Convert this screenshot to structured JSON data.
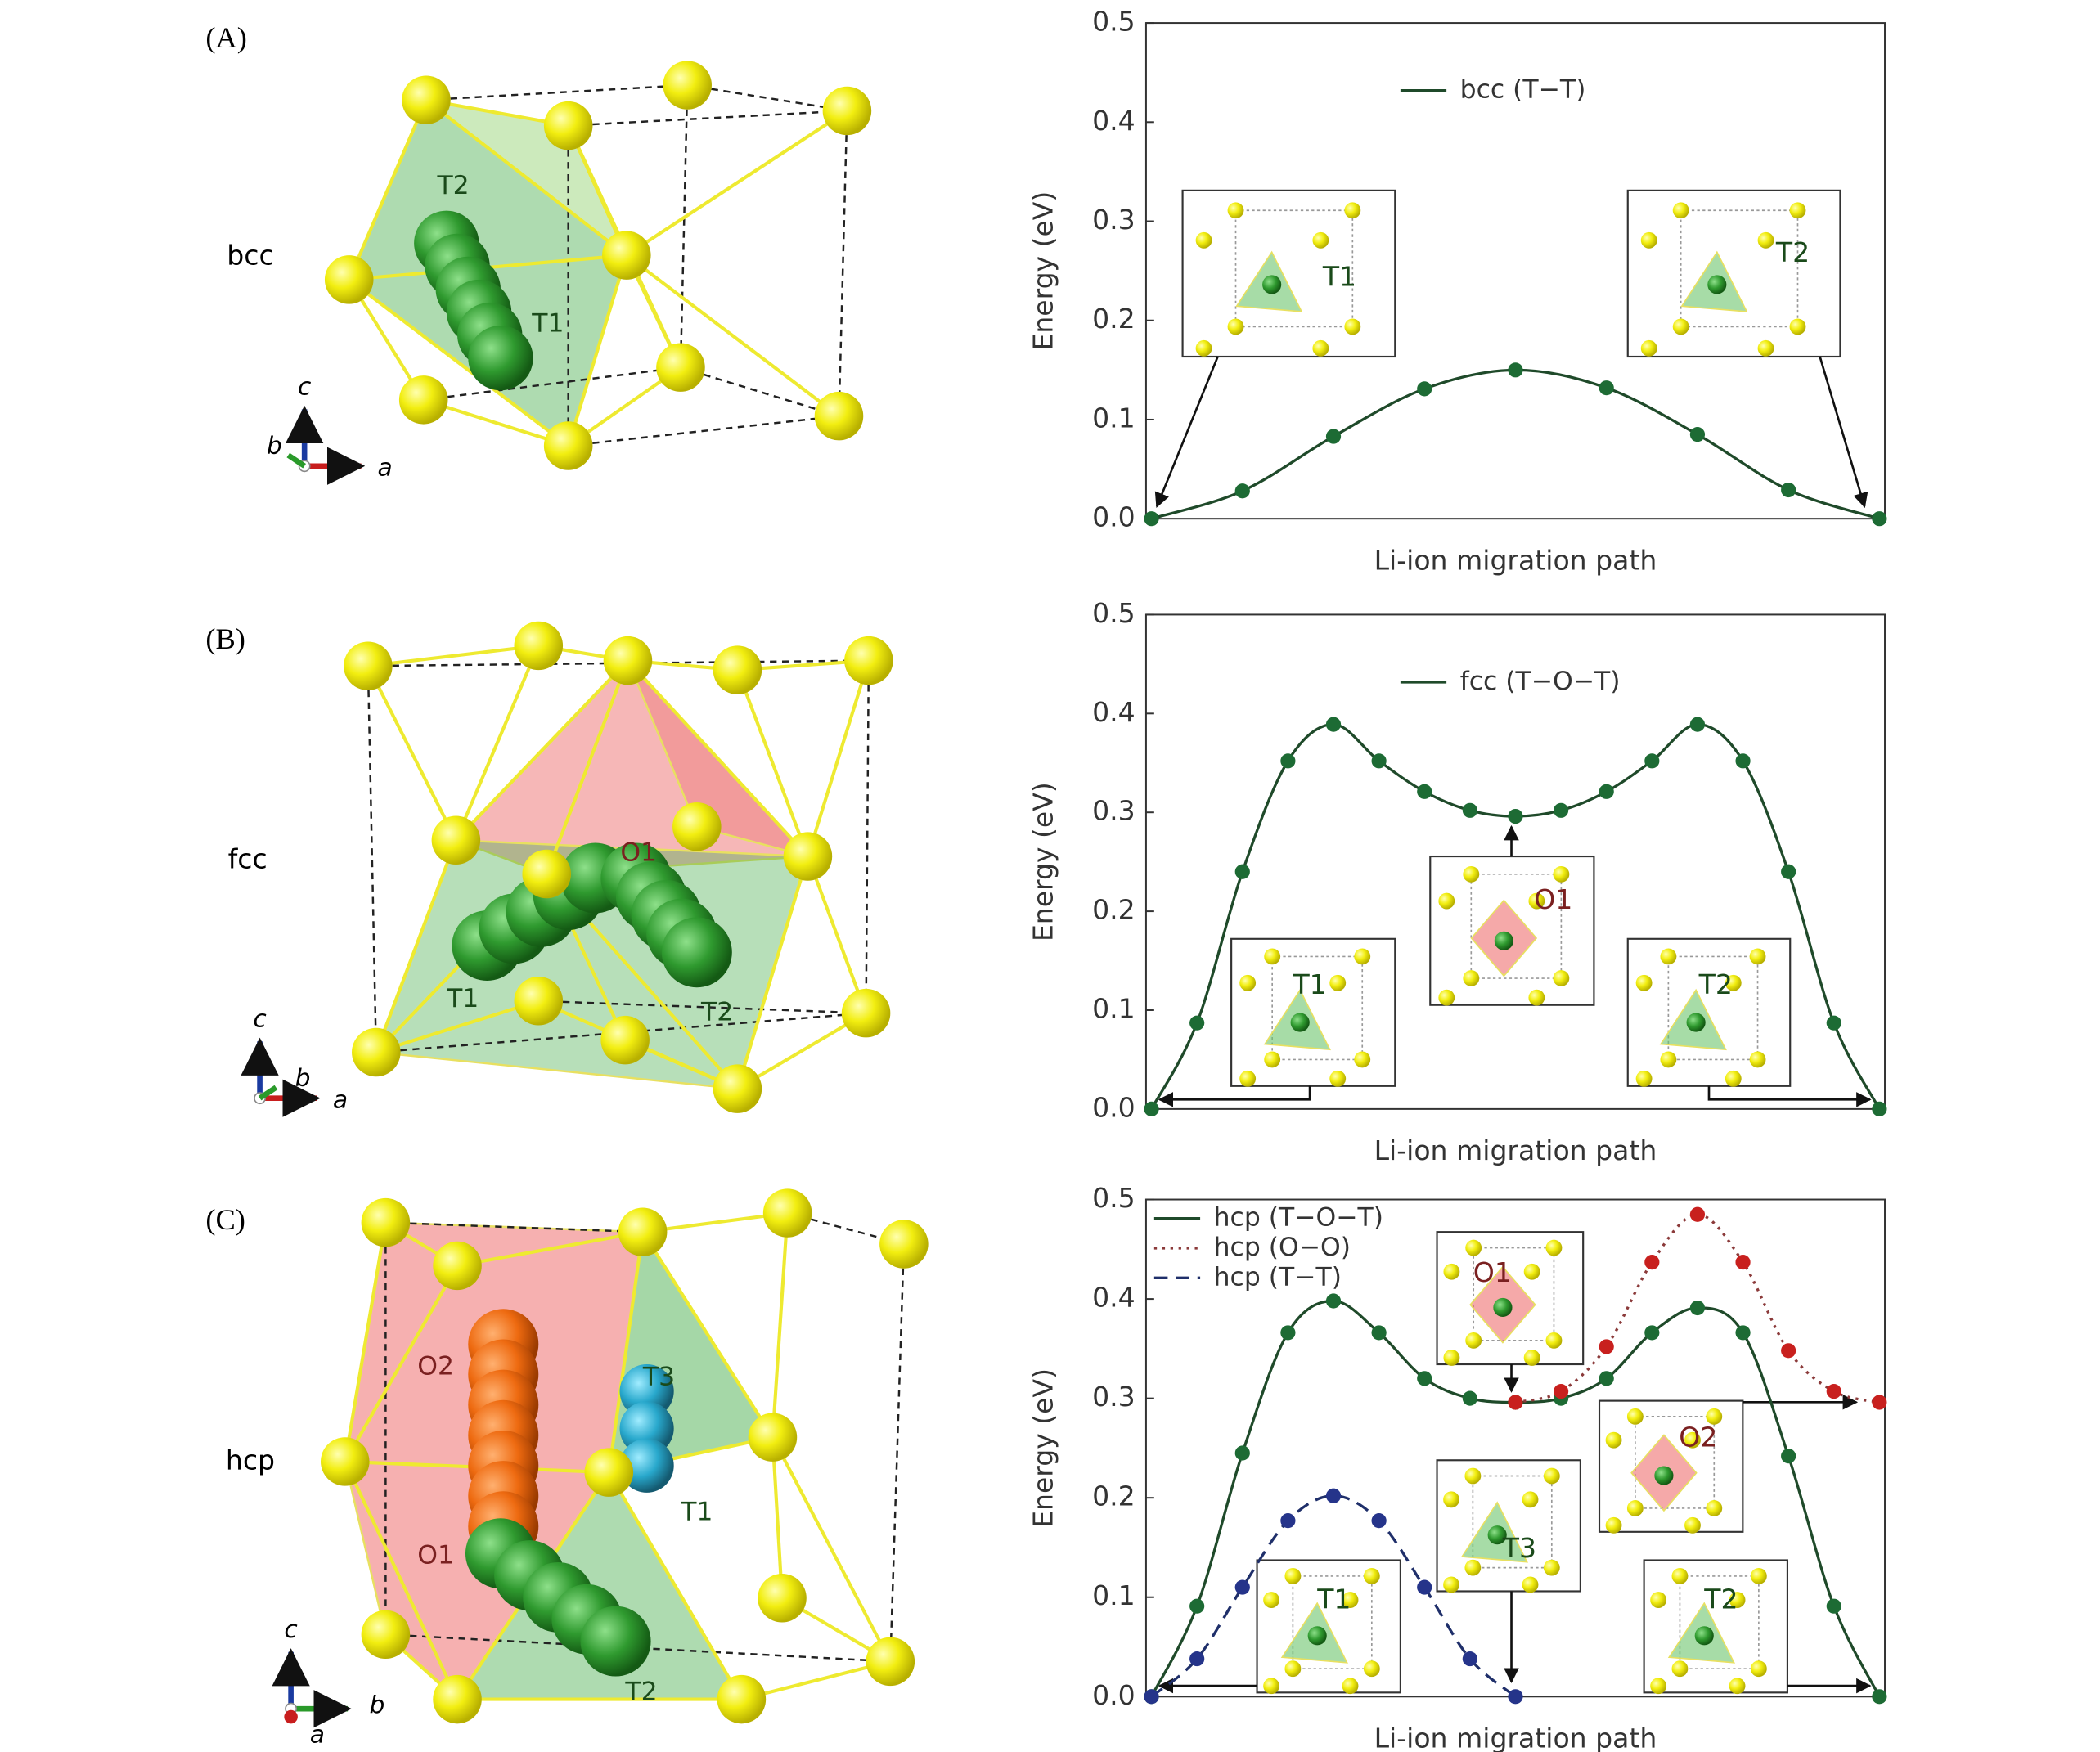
{
  "figure": {
    "panels": [
      {
        "label": "(A)",
        "structure": "bcc",
        "site_labels": [
          "T2",
          "T1"
        ],
        "axis_labels": [
          "c",
          "b",
          "a"
        ]
      },
      {
        "label": "(B)",
        "structure": "fcc",
        "site_labels": [
          "O1",
          "T1",
          "T2"
        ],
        "axis_labels": [
          "c",
          "b",
          "a"
        ]
      },
      {
        "label": "(C)",
        "structure": "hcp",
        "site_labels": [
          "O2",
          "T3",
          "T1",
          "O1",
          "T2"
        ],
        "axis_labels": [
          "c",
          "b",
          "a"
        ]
      }
    ]
  },
  "chart_data": [
    {
      "type": "line",
      "ylabel": "Energy (eV)",
      "xlabel": "Li-ion migration path",
      "categories": [
        null,
        null,
        null,
        null,
        null,
        null,
        null,
        null,
        null
      ],
      "ylim": [
        0,
        0.5
      ],
      "yticks": [
        {
          "value": 0,
          "label": "0.0"
        },
        0.1,
        0.2,
        0.3,
        0.4,
        0.5
      ],
      "legend": "upper center",
      "insets": [
        "T1",
        "T2"
      ],
      "series": [
        {
          "name": "bcc (T−T)",
          "color": "#1f4a2a",
          "marker_color": "#1d6b34",
          "style": "solid",
          "values": [
            0,
            0.028,
            0.083,
            0.131,
            0.15,
            0.132,
            0.085,
            0.029,
            0
          ]
        }
      ]
    },
    {
      "type": "line",
      "ylabel": "Energy (eV)",
      "xlabel": "Li-ion migration path",
      "categories": [
        null,
        null,
        null,
        null,
        null,
        null,
        null,
        null,
        null,
        null,
        null,
        null,
        null,
        null,
        null,
        null,
        null
      ],
      "ylim": [
        0,
        0.5
      ],
      "yticks": [
        {
          "value": 0,
          "label": "0.0"
        },
        0.1,
        0.2,
        0.3,
        0.4,
        0.5
      ],
      "legend": "upper center",
      "insets": [
        "T1",
        "O1",
        "T2"
      ],
      "series": [
        {
          "name": "fcc (T−O−T)",
          "color": "#1f4a2a",
          "marker_color": "#1d6b34",
          "style": "solid",
          "values": [
            0,
            0.087,
            0.24,
            0.352,
            0.389,
            0.352,
            0.321,
            0.302,
            0.296,
            0.302,
            0.321,
            0.352,
            0.389,
            0.352,
            0.24,
            0.087,
            0
          ]
        }
      ]
    },
    {
      "type": "line",
      "ylabel": "Energy (eV)",
      "xlabel": "Li-ion migration path",
      "categories": [
        null,
        null,
        null,
        null,
        null,
        null,
        null,
        null,
        null,
        null,
        null,
        null,
        null,
        null,
        null,
        null,
        null
      ],
      "ylim": [
        0,
        0.5
      ],
      "yticks": [
        {
          "value": 0,
          "label": "0.0"
        },
        0.1,
        0.2,
        0.3,
        0.4,
        0.5
      ],
      "legend": "upper left",
      "insets": [
        "O1",
        "O2",
        "T3",
        "T1",
        "T2"
      ],
      "series": [
        {
          "name": "hcp (T−O−T)",
          "color": "#1f4a2a",
          "marker_color": "#1d6b34",
          "style": "solid",
          "values": [
            0,
            0.091,
            0.245,
            0.366,
            0.398,
            0.366,
            0.32,
            0.3,
            0.296,
            0.3,
            0.32,
            0.366,
            0.391,
            0.366,
            0.242,
            0.091,
            0
          ]
        },
        {
          "name": "hcp (O−O)",
          "color": "#8b3a3a",
          "marker_color": "#c8201e",
          "style": "dotted",
          "values": [
            null,
            null,
            null,
            null,
            null,
            null,
            null,
            null,
            0.296,
            0.307,
            0.352,
            0.437,
            0.485,
            0.437,
            0.348,
            0.307,
            0.296
          ]
        },
        {
          "name": "hcp (T−T)",
          "color": "#1f2f6a",
          "marker_color": "#25348a",
          "style": "dashed",
          "values": [
            0,
            0.038,
            0.11,
            0.177,
            0.202,
            0.177,
            0.11,
            0.038,
            0,
            null,
            null,
            null,
            null,
            null,
            null,
            null,
            null
          ]
        }
      ]
    }
  ]
}
